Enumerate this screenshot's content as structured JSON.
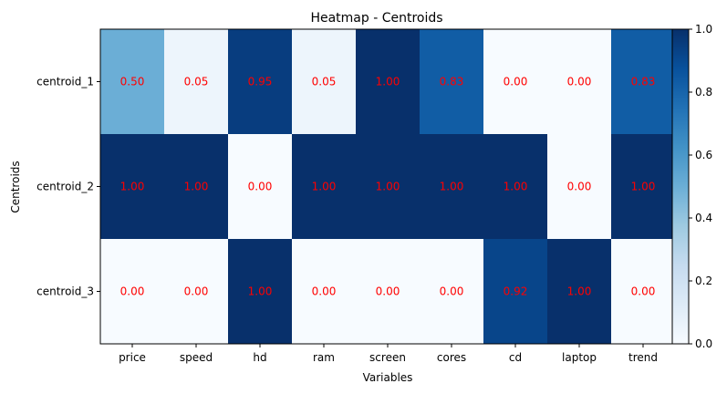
{
  "chart_data": {
    "type": "heatmap",
    "title": "Heatmap - Centroids",
    "xlabel": "Variables",
    "ylabel": "Centroids",
    "x_categories": [
      "price",
      "speed",
      "hd",
      "ram",
      "screen",
      "cores",
      "cd",
      "laptop",
      "trend"
    ],
    "y_categories": [
      "centroid_1",
      "centroid_2",
      "centroid_3"
    ],
    "values": [
      [
        0.5,
        0.05,
        0.95,
        0.05,
        1.0,
        0.83,
        0.0,
        0.0,
        0.83
      ],
      [
        1.0,
        1.0,
        0.0,
        1.0,
        1.0,
        1.0,
        1.0,
        0.0,
        1.0
      ],
      [
        0.0,
        0.0,
        1.0,
        0.0,
        0.0,
        0.0,
        0.92,
        1.0,
        0.0
      ]
    ],
    "value_label_color": "#ff0000",
    "colormap": "Blues",
    "colorbar": {
      "range": [
        0,
        1
      ],
      "ticks": [
        "0.0",
        "0.2",
        "0.4",
        "0.6",
        "0.8",
        "1.0"
      ]
    },
    "grid": false
  }
}
